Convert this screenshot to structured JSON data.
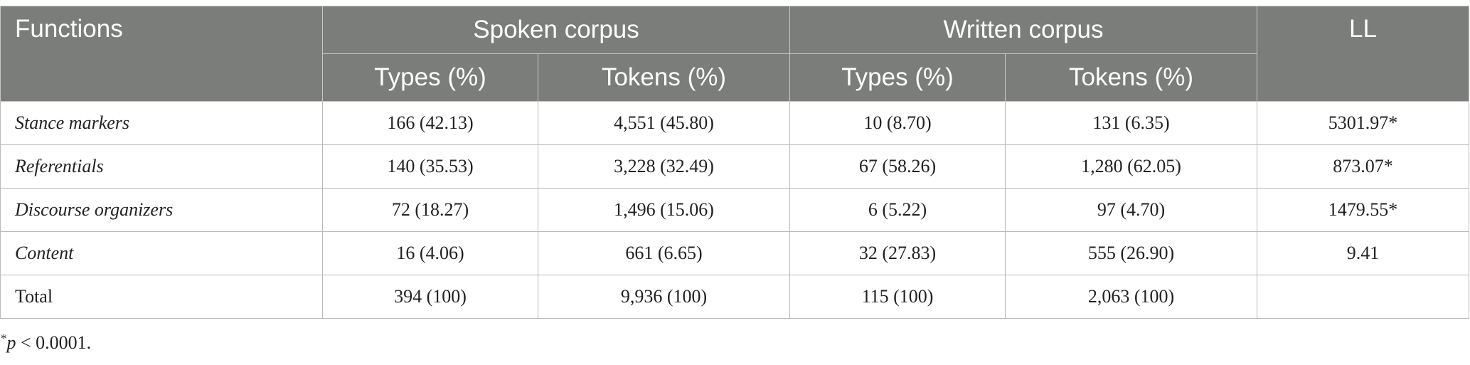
{
  "table": {
    "header": {
      "functions": "Functions",
      "spoken": "Spoken corpus",
      "written": "Written corpus",
      "ll": "LL",
      "sub": [
        "Types (%)",
        "Tokens (%)",
        "Types (%)",
        "Tokens (%)"
      ]
    },
    "rows": [
      {
        "function": "Stance markers",
        "spoken_types": "166 (42.13)",
        "spoken_tokens": "4,551 (45.80)",
        "written_types": "10 (8.70)",
        "written_tokens": "131 (6.35)",
        "ll": "5301.97*"
      },
      {
        "function": "Referentials",
        "spoken_types": "140 (35.53)",
        "spoken_tokens": "3,228 (32.49)",
        "written_types": "67 (58.26)",
        "written_tokens": "1,280 (62.05)",
        "ll": "873.07*"
      },
      {
        "function": "Discourse organizers",
        "spoken_types": "72 (18.27)",
        "spoken_tokens": "1,496 (15.06)",
        "written_types": "6 (5.22)",
        "written_tokens": "97 (4.70)",
        "ll": "1479.55*"
      },
      {
        "function": "Content",
        "spoken_types": "16 (4.06)",
        "spoken_tokens": "661 (6.65)",
        "written_types": "32 (27.83)",
        "written_tokens": "555 (26.90)",
        "ll": "9.41"
      },
      {
        "function": "Total",
        "spoken_types": "394 (100)",
        "spoken_tokens": "9,936 (100)",
        "written_types": "115 (100)",
        "written_tokens": "2,063 (100)",
        "ll": ""
      }
    ]
  },
  "footnote": {
    "symbol": "*",
    "variable": "p",
    "text": " < 0.0001."
  }
}
